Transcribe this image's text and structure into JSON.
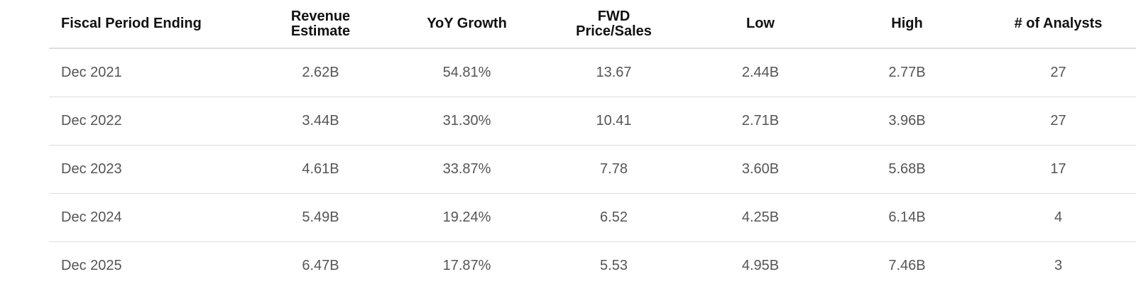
{
  "table": {
    "headers": [
      {
        "lines": [
          "Fiscal Period Ending"
        ]
      },
      {
        "lines": [
          "Revenue",
          "Estimate"
        ]
      },
      {
        "lines": [
          "YoY Growth"
        ]
      },
      {
        "lines": [
          "FWD",
          "Price/Sales"
        ]
      },
      {
        "lines": [
          "Low"
        ]
      },
      {
        "lines": [
          "High"
        ]
      },
      {
        "lines": [
          "# of Analysts"
        ]
      }
    ],
    "rows": [
      [
        "Dec 2021",
        "2.62B",
        "54.81%",
        "13.67",
        "2.44B",
        "2.77B",
        "27"
      ],
      [
        "Dec 2022",
        "3.44B",
        "31.30%",
        "10.41",
        "2.71B",
        "3.96B",
        "27"
      ],
      [
        "Dec 2023",
        "4.61B",
        "33.87%",
        "7.78",
        "3.60B",
        "5.68B",
        "17"
      ],
      [
        "Dec 2024",
        "5.49B",
        "19.24%",
        "6.52",
        "4.25B",
        "6.14B",
        "4"
      ],
      [
        "Dec 2025",
        "6.47B",
        "17.87%",
        "5.53",
        "4.95B",
        "7.46B",
        "3"
      ]
    ]
  }
}
